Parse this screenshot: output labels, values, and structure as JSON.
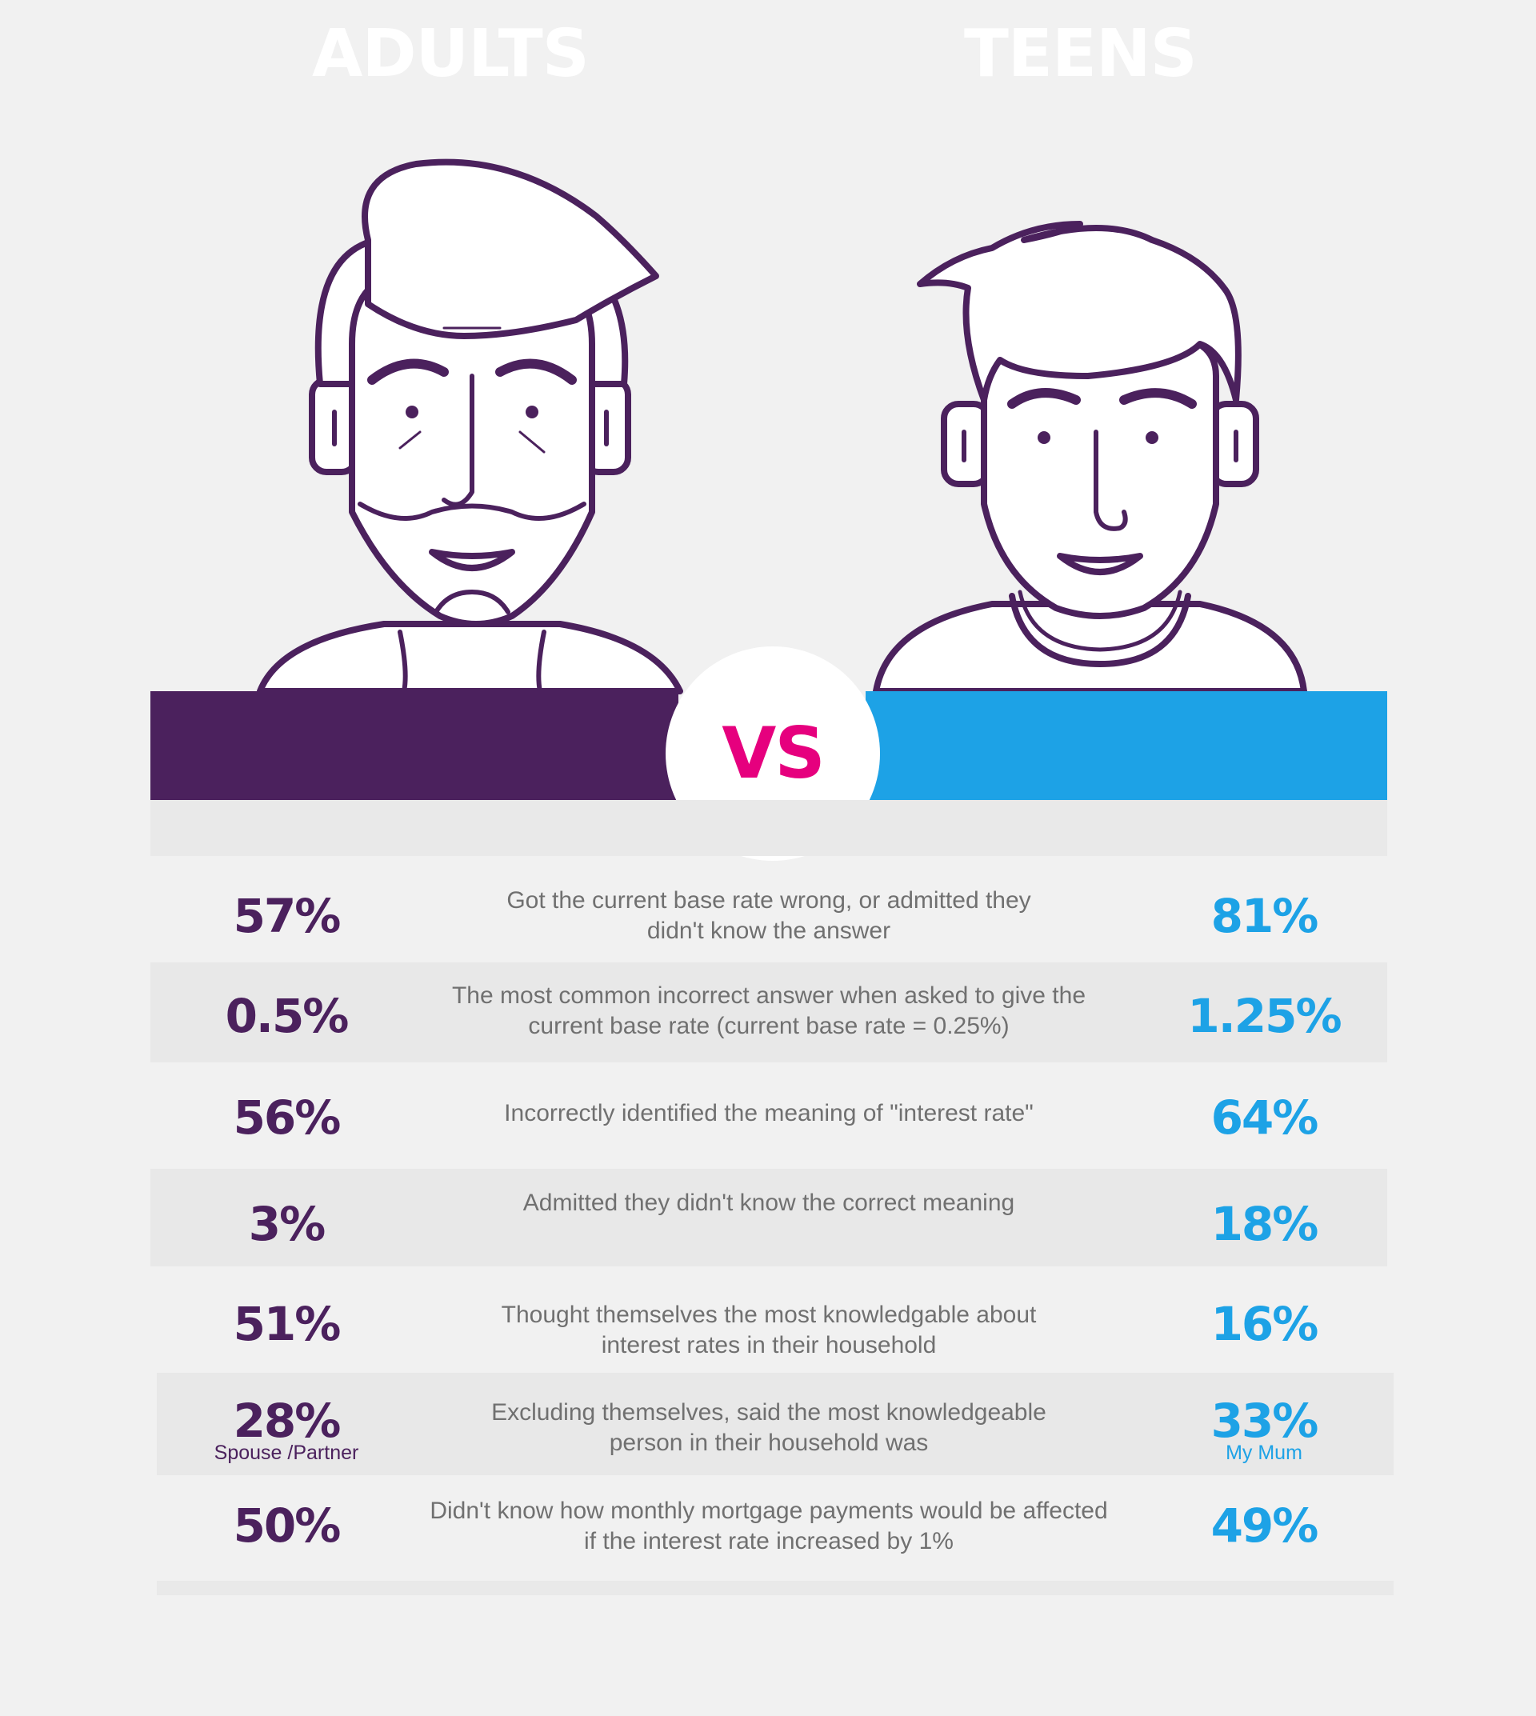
{
  "header": {
    "left_label": "ADULTS",
    "vs_label": "VS",
    "right_label": "TEENS"
  },
  "colors": {
    "background": "#f1f1f1",
    "adult_purple": "#4b215d",
    "teen_blue": "#1da2e6",
    "vs_pink": "#e6007e",
    "description_gray": "#707070"
  },
  "icons": [
    "adult-man-face-icon",
    "teen-boy-face-icon"
  ],
  "rows": [
    {
      "adult": "57%",
      "teen": "81%",
      "description": "Got the current base rate wrong, or admitted they\ndidn't know the answer"
    },
    {
      "adult": "0.5%",
      "teen": "1.25%",
      "description": "The most common incorrect answer when asked to give the\ncurrent base rate (current base rate = 0.25%)"
    },
    {
      "adult": "56%",
      "teen": "64%",
      "description": "Incorrectly identified the meaning of \"interest rate\""
    },
    {
      "adult": "3%",
      "teen": "18%",
      "description": "Admitted they didn't know the correct meaning"
    },
    {
      "adult": "51%",
      "teen": "16%",
      "description": "Thought themselves the most knowledgable about\ninterest rates in their household"
    },
    {
      "adult": "28%",
      "adult_note": "Spouse /Partner",
      "teen": "33%",
      "teen_note": "My Mum",
      "description": "Excluding themselves, said the most knowledgeable\nperson in their household was"
    },
    {
      "adult": "50%",
      "teen": "49%",
      "description": "Didn't know how monthly mortgage payments would be affected\nif the interest rate increased by 1%"
    }
  ]
}
